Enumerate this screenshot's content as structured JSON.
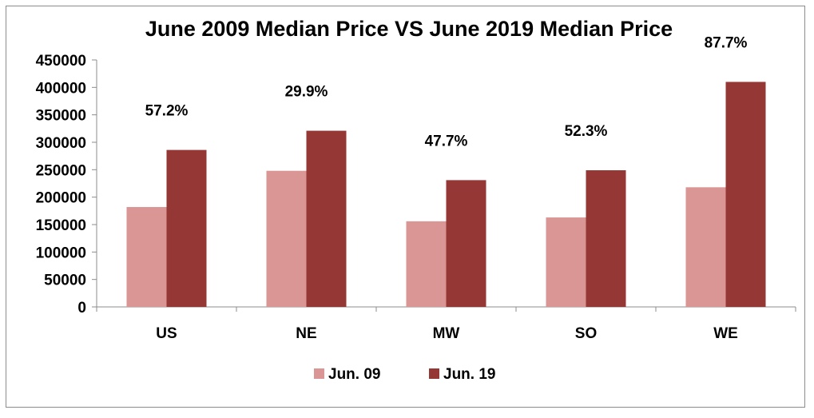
{
  "chart_data": {
    "type": "bar",
    "title": "June 2009 Median Price VS June 2019 Median Price",
    "xlabel": "",
    "ylabel": "",
    "categories": [
      "US",
      "NE",
      "MW",
      "SO",
      "WE"
    ],
    "series": [
      {
        "name": "Jun. 09",
        "color": "#d99694",
        "values": [
          182000,
          248000,
          156000,
          163000,
          218000
        ]
      },
      {
        "name": "Jun. 19",
        "color": "#953735",
        "values": [
          286000,
          321000,
          231000,
          249000,
          410000
        ]
      }
    ],
    "annotations": [
      "57.2%",
      "29.9%",
      "47.7%",
      "52.3%",
      "87.7%"
    ],
    "ylim": [
      0,
      450000
    ],
    "yticks": [
      "0",
      "50000",
      "100000",
      "150000",
      "200000",
      "250000",
      "300000",
      "350000",
      "400000",
      "450000"
    ],
    "grid": false,
    "legend": "bottom"
  }
}
